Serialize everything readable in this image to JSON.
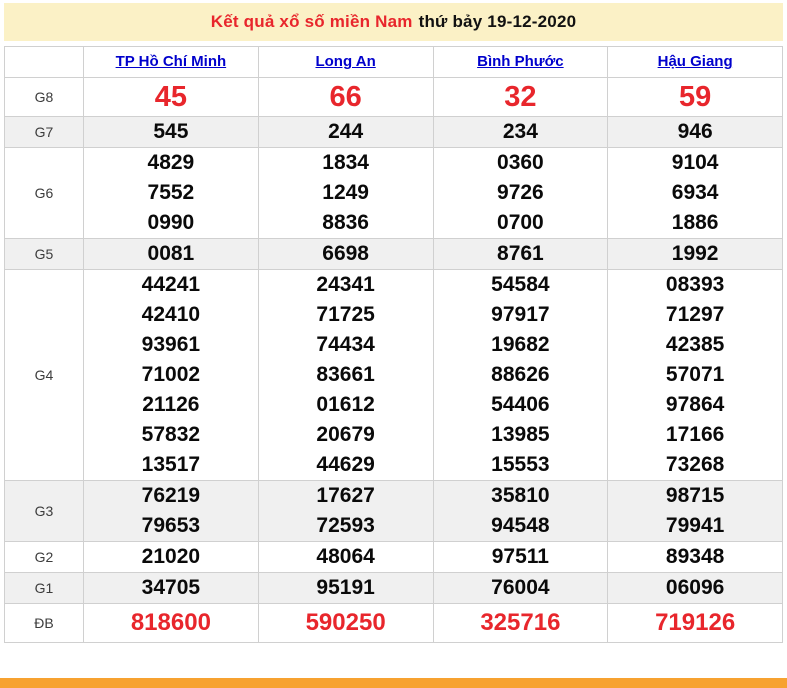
{
  "title": {
    "highlight": "Kết quả xổ số miền Nam",
    "date_part": "thứ bảy 19-12-2020"
  },
  "columns": [
    "TP Hồ Chí Minh",
    "Long An",
    "Bình Phước",
    "Hậu Giang"
  ],
  "rows": [
    {
      "key": "g8",
      "label": "G8",
      "cells": [
        [
          "45"
        ],
        [
          "66"
        ],
        [
          "32"
        ],
        [
          "59"
        ]
      ]
    },
    {
      "key": "g7",
      "label": "G7",
      "cells": [
        [
          "545"
        ],
        [
          "244"
        ],
        [
          "234"
        ],
        [
          "946"
        ]
      ]
    },
    {
      "key": "g6",
      "label": "G6",
      "cells": [
        [
          "4829",
          "7552",
          "0990"
        ],
        [
          "1834",
          "1249",
          "8836"
        ],
        [
          "0360",
          "9726",
          "0700"
        ],
        [
          "9104",
          "6934",
          "1886"
        ]
      ]
    },
    {
      "key": "g5",
      "label": "G5",
      "cells": [
        [
          "0081"
        ],
        [
          "6698"
        ],
        [
          "8761"
        ],
        [
          "1992"
        ]
      ]
    },
    {
      "key": "g4",
      "label": "G4",
      "cells": [
        [
          "44241",
          "42410",
          "93961",
          "71002",
          "21126",
          "57832",
          "13517"
        ],
        [
          "24341",
          "71725",
          "74434",
          "83661",
          "01612",
          "20679",
          "44629"
        ],
        [
          "54584",
          "97917",
          "19682",
          "88626",
          "54406",
          "13985",
          "15553"
        ],
        [
          "08393",
          "71297",
          "42385",
          "57071",
          "97864",
          "17166",
          "73268"
        ]
      ]
    },
    {
      "key": "g3",
      "label": "G3",
      "cells": [
        [
          "76219",
          "79653"
        ],
        [
          "17627",
          "72593"
        ],
        [
          "35810",
          "94548"
        ],
        [
          "98715",
          "79941"
        ]
      ]
    },
    {
      "key": "g2",
      "label": "G2",
      "cells": [
        [
          "21020"
        ],
        [
          "48064"
        ],
        [
          "97511"
        ],
        [
          "89348"
        ]
      ]
    },
    {
      "key": "g1",
      "label": "G1",
      "cells": [
        [
          "34705"
        ],
        [
          "95191"
        ],
        [
          "76004"
        ],
        [
          "06096"
        ]
      ]
    },
    {
      "key": "db",
      "label": "ĐB",
      "cells": [
        [
          "818600"
        ],
        [
          "590250"
        ],
        [
          "325716"
        ],
        [
          "719126"
        ]
      ]
    }
  ],
  "colors": {
    "title_background": "#FBF1C6",
    "highlight_red": "#E8262C",
    "link_blue": "#0000CC",
    "alt_row_gray": "#F0F0F0",
    "border_gray": "#D0D0D0",
    "footer_orange": "#F7A230"
  }
}
